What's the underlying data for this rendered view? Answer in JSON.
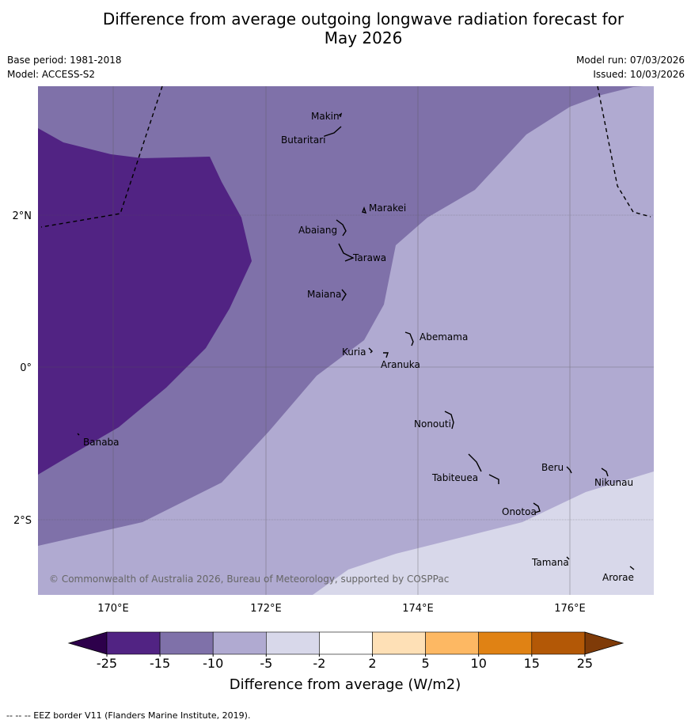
{
  "title_line1": "Difference from average outgoing longwave radiation forecast for",
  "title_line2": "May 2026",
  "base_period": "Base period: 1981-2018",
  "model": "Model: ACCESS-S2",
  "model_run": "Model run: 07/03/2026",
  "issued": "Issued: 10/03/2026",
  "lon_labels": [
    "170°E",
    "172°E",
    "174°E",
    "176°E"
  ],
  "lat_labels": [
    "2°N",
    "0°",
    "2°S"
  ],
  "islands": [
    "Makin",
    "Butaritari",
    "Marakei",
    "Abaiang",
    "Tarawa",
    "Maiana",
    "Abemama",
    "Kuria",
    "Aranuka",
    "Nonouti",
    "Banaba",
    "Tabiteuea",
    "Beru",
    "Nikunau",
    "Onotoa",
    "Tamana",
    "Arorae"
  ],
  "copyright": "© Commonwealth of Australia 2026, Bureau of Meteorology, supported by COSPPac",
  "colorbar": {
    "ticks": [
      "-25",
      "-15",
      "-10",
      "-5",
      "-2",
      "2",
      "5",
      "10",
      "15",
      "25"
    ],
    "colors": [
      "#512383",
      "#7f71a9",
      "#b0aad1",
      "#d8d8ea",
      "#ffffff",
      "#fee0b6",
      "#fdb863",
      "#e08214",
      "#b35806"
    ],
    "under_color": "#2d004b",
    "over_color": "#7f3b08",
    "label": "Difference from average (W/m2)"
  },
  "footnote": "-- -- -- EEZ border V11 (Flanders Marine Institute, 2019)."
}
